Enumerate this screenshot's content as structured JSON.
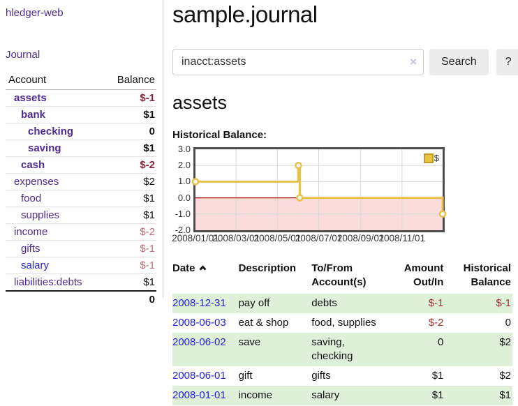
{
  "app": {
    "brand": "hledger-web",
    "nav_journal": "Journal"
  },
  "sidebar": {
    "columns": {
      "account": "Account",
      "balance": "Balance"
    },
    "accounts": [
      {
        "name": "assets",
        "balance": "$-1"
      },
      {
        "name": "bank",
        "balance": "$1"
      },
      {
        "name": "checking",
        "balance": "0"
      },
      {
        "name": "saving",
        "balance": "$1"
      },
      {
        "name": "cash",
        "balance": "$-2"
      },
      {
        "name": "expenses",
        "balance": "$2"
      },
      {
        "name": "food",
        "balance": "$1"
      },
      {
        "name": "supplies",
        "balance": "$1"
      },
      {
        "name": "income",
        "balance": "$-2"
      },
      {
        "name": "gifts",
        "balance": "$-1"
      },
      {
        "name": "salary",
        "balance": "$-1"
      },
      {
        "name": "liabilities:debts",
        "balance": "$1"
      }
    ],
    "total": "0"
  },
  "header": {
    "title": "sample.journal"
  },
  "search": {
    "value": "inacct:assets",
    "clear_icon": "×",
    "button_label": "Search",
    "help_label": "?"
  },
  "account_page": {
    "title": "assets",
    "chart_label": "Historical Balance:"
  },
  "chart_data": {
    "type": "line",
    "step": true,
    "series": [
      {
        "name": "$",
        "points": [
          [
            "2008-01-01",
            1
          ],
          [
            "2008-06-01",
            2
          ],
          [
            "2008-06-03",
            0
          ],
          [
            "2008-12-31",
            -1
          ]
        ]
      }
    ],
    "xrange": [
      "2008-01-01",
      "2008-12-31"
    ],
    "ylim": [
      -2,
      3
    ],
    "yticks": [
      3,
      2,
      1,
      0,
      -1,
      -2
    ],
    "xticks": [
      "2008/01/01",
      "2008/03/01",
      "2008/05/01",
      "2008/07/01",
      "2008/09/01",
      "2008/11/01"
    ],
    "legend_position": "top-right",
    "grid": true,
    "colors": {
      "line": "#e8c04a",
      "marker_fill": "#ffffff",
      "negative_region": "#fadcdc",
      "zero_line": "#a00000",
      "grid": "#d8d8d8",
      "border": "#4d4d4d",
      "legend_fill": "#eac33e",
      "legend_border": "#c29b2d"
    }
  },
  "register": {
    "columns": [
      "Date",
      "Description",
      "To/From Account(s)",
      "Amount Out/In",
      "Historical Balance"
    ],
    "header": {
      "date": "Date",
      "description": "Description",
      "tofrom1": "To/From",
      "tofrom2": "Account(s)",
      "amount1": "Amount",
      "amount2": "Out/In",
      "hist1": "Historical",
      "hist2": "Balance"
    },
    "rows": [
      {
        "date": "2008-12-31",
        "description": "pay off",
        "accounts": "debts",
        "amount": "$-1",
        "balance": "$-1"
      },
      {
        "date": "2008-06-03",
        "description": "eat & shop",
        "accounts": "food, supplies",
        "amount": "$-2",
        "balance": "0"
      },
      {
        "date": "2008-06-02",
        "description": "save",
        "accounts": "saving, checking",
        "amount": "0",
        "balance": "$2"
      },
      {
        "date": "2008-06-01",
        "description": "gift",
        "accounts": "gifts",
        "amount": "$1",
        "balance": "$2"
      },
      {
        "date": "2008-01-01",
        "description": "income",
        "accounts": "salary",
        "amount": "$1",
        "balance": "$1"
      }
    ]
  }
}
